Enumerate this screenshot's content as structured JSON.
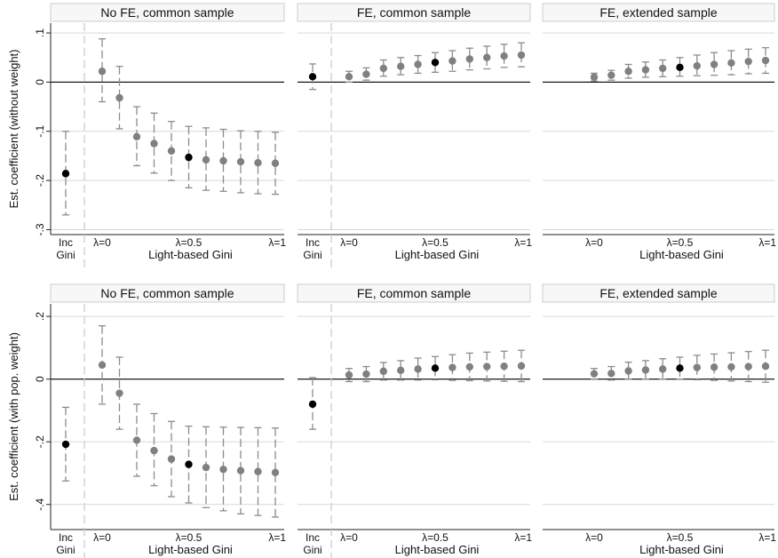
{
  "colors": {
    "point_regular": "#808080",
    "point_highlight": "#000000",
    "ci": "#8c8c8c",
    "grid": "#d9d9d9",
    "zero_line": "#000000",
    "strip_fill": "#f7f7f7",
    "strip_border": "#cccccc",
    "separator": "#c8c8c8"
  },
  "chart_data": [
    {
      "type": "scatter",
      "panel": "top-left",
      "title": "No FE, common sample",
      "ylabel": "Est. coefficient (without weight)",
      "xlabel": "Light-based Gini",
      "ylim": [
        -0.31,
        0.12
      ],
      "yticks": [
        0.1,
        0,
        -0.1,
        -0.2,
        -0.3
      ],
      "ytick_labels": [
        ".1",
        "0",
        "-.1",
        "-.2",
        "-.3"
      ],
      "inc_label": [
        "Inc",
        "Gini"
      ],
      "xtick_labels": [
        "λ=0",
        "λ=0.5",
        "λ=1"
      ],
      "inc": {
        "est": -0.186,
        "lo": -0.27,
        "hi": -0.1
      },
      "lambda": [
        0,
        0.1,
        0.2,
        0.3,
        0.4,
        0.5,
        0.6,
        0.7,
        0.8,
        0.9,
        1.0
      ],
      "est": [
        0.022,
        -0.032,
        -0.111,
        -0.125,
        -0.14,
        -0.153,
        -0.158,
        -0.16,
        -0.162,
        -0.164,
        -0.165
      ],
      "lo": [
        -0.04,
        -0.095,
        -0.17,
        -0.185,
        -0.2,
        -0.215,
        -0.22,
        -0.222,
        -0.225,
        -0.227,
        -0.228
      ],
      "hi": [
        0.088,
        0.032,
        -0.05,
        -0.063,
        -0.08,
        -0.09,
        -0.093,
        -0.096,
        -0.099,
        -0.1,
        -0.102
      ],
      "highlight_lambda": 0.5
    },
    {
      "type": "scatter",
      "panel": "top-middle",
      "title": "FE, common sample",
      "ylabel": "",
      "xlabel": "Light-based Gini",
      "ylim": [
        -0.31,
        0.12
      ],
      "yticks": [
        0.1,
        0,
        -0.1,
        -0.2,
        -0.3
      ],
      "inc_label": [
        "Inc",
        "Gini"
      ],
      "xtick_labels": [
        "λ=0",
        "λ=0.5",
        "λ=1"
      ],
      "inc": {
        "est": 0.011,
        "lo": -0.015,
        "hi": 0.037
      },
      "lambda": [
        0,
        0.1,
        0.2,
        0.3,
        0.4,
        0.5,
        0.6,
        0.7,
        0.8,
        0.9,
        1.0
      ],
      "est": [
        0.011,
        0.016,
        0.028,
        0.032,
        0.036,
        0.04,
        0.043,
        0.047,
        0.05,
        0.053,
        0.055
      ],
      "lo": [
        0.0,
        0.004,
        0.012,
        0.015,
        0.018,
        0.02,
        0.022,
        0.025,
        0.027,
        0.03,
        0.031
      ],
      "hi": [
        0.022,
        0.029,
        0.045,
        0.05,
        0.054,
        0.06,
        0.064,
        0.069,
        0.073,
        0.077,
        0.08
      ],
      "highlight_lambda": 0.5
    },
    {
      "type": "scatter",
      "panel": "top-right",
      "title": "FE, extended sample",
      "ylabel": "",
      "xlabel": "Light-based Gini",
      "ylim": [
        -0.31,
        0.12
      ],
      "yticks": [
        0.1,
        0,
        -0.1,
        -0.2,
        -0.3
      ],
      "inc_label": null,
      "xtick_labels": [
        "λ=0",
        "λ=0.5",
        "λ=1"
      ],
      "inc": null,
      "lambda": [
        0,
        0.1,
        0.2,
        0.3,
        0.4,
        0.5,
        0.6,
        0.7,
        0.8,
        0.9,
        1.0
      ],
      "est": [
        0.01,
        0.014,
        0.022,
        0.025,
        0.028,
        0.03,
        0.033,
        0.036,
        0.039,
        0.042,
        0.044
      ],
      "lo": [
        0.002,
        0.004,
        0.008,
        0.01,
        0.011,
        0.012,
        0.013,
        0.014,
        0.015,
        0.017,
        0.018
      ],
      "hi": [
        0.018,
        0.024,
        0.036,
        0.041,
        0.045,
        0.05,
        0.055,
        0.06,
        0.064,
        0.067,
        0.07
      ],
      "highlight_lambda": 0.5
    },
    {
      "type": "scatter",
      "panel": "bottom-left",
      "title": "No FE, common sample",
      "ylabel": "Est. coefficient (with pop. weight)",
      "xlabel": "Light-based Gini",
      "ylim": [
        -0.48,
        0.24
      ],
      "yticks": [
        0.2,
        0,
        -0.2,
        -0.4
      ],
      "ytick_labels": [
        ".2",
        "0",
        "-.2",
        "-.4"
      ],
      "inc_label": [
        "Inc",
        "Gini"
      ],
      "xtick_labels": [
        "λ=0",
        "λ=0.5",
        "λ=1"
      ],
      "inc": {
        "est": -0.208,
        "lo": -0.325,
        "hi": -0.09
      },
      "lambda": [
        0,
        0.1,
        0.2,
        0.3,
        0.4,
        0.5,
        0.6,
        0.7,
        0.8,
        0.9,
        1.0
      ],
      "est": [
        0.045,
        -0.045,
        -0.195,
        -0.228,
        -0.255,
        -0.272,
        -0.282,
        -0.288,
        -0.292,
        -0.295,
        -0.298
      ],
      "lo": [
        -0.08,
        -0.16,
        -0.31,
        -0.34,
        -0.375,
        -0.395,
        -0.41,
        -0.42,
        -0.43,
        -0.435,
        -0.44
      ],
      "hi": [
        0.17,
        0.07,
        -0.08,
        -0.11,
        -0.135,
        -0.15,
        -0.152,
        -0.153,
        -0.154,
        -0.155,
        -0.156
      ],
      "highlight_lambda": 0.5
    },
    {
      "type": "scatter",
      "panel": "bottom-middle",
      "title": "FE, common sample",
      "ylabel": "",
      "xlabel": "Light-based Gini",
      "ylim": [
        -0.48,
        0.24
      ],
      "yticks": [
        0.2,
        0,
        -0.2,
        -0.4
      ],
      "inc_label": [
        "Inc",
        "Gini"
      ],
      "xtick_labels": [
        "λ=0",
        "λ=0.5",
        "λ=1"
      ],
      "inc": {
        "est": -0.08,
        "lo": -0.16,
        "hi": 0.005
      },
      "lambda": [
        0,
        0.1,
        0.2,
        0.3,
        0.4,
        0.5,
        0.6,
        0.7,
        0.8,
        0.9,
        1.0
      ],
      "est": [
        0.013,
        0.016,
        0.025,
        0.028,
        0.032,
        0.035,
        0.037,
        0.039,
        0.04,
        0.041,
        0.042
      ],
      "lo": [
        -0.008,
        -0.008,
        -0.003,
        -0.003,
        -0.003,
        -0.002,
        -0.004,
        -0.005,
        -0.006,
        -0.007,
        -0.008
      ],
      "hi": [
        0.034,
        0.04,
        0.053,
        0.059,
        0.067,
        0.072,
        0.078,
        0.083,
        0.086,
        0.089,
        0.092
      ],
      "highlight_lambda": 0.5
    },
    {
      "type": "scatter",
      "panel": "bottom-right",
      "title": "FE, extended sample",
      "ylabel": "",
      "xlabel": "Light-based Gini",
      "ylim": [
        -0.48,
        0.24
      ],
      "yticks": [
        0.2,
        0,
        -0.2,
        -0.4
      ],
      "inc_label": null,
      "xtick_labels": [
        "λ=0",
        "λ=0.5",
        "λ=1"
      ],
      "inc": null,
      "lambda": [
        0,
        0.1,
        0.2,
        0.3,
        0.4,
        0.5,
        0.6,
        0.7,
        0.8,
        0.9,
        1.0
      ],
      "est": [
        0.017,
        0.018,
        0.026,
        0.029,
        0.032,
        0.035,
        0.037,
        0.038,
        0.039,
        0.04,
        0.041
      ],
      "lo": [
        0.0,
        -0.003,
        0.0,
        0.0,
        0.0,
        0.0,
        -0.002,
        -0.004,
        -0.006,
        -0.008,
        -0.01
      ],
      "hi": [
        0.034,
        0.04,
        0.054,
        0.059,
        0.065,
        0.07,
        0.076,
        0.08,
        0.084,
        0.088,
        0.092
      ],
      "highlight_lambda": 0.5
    }
  ]
}
